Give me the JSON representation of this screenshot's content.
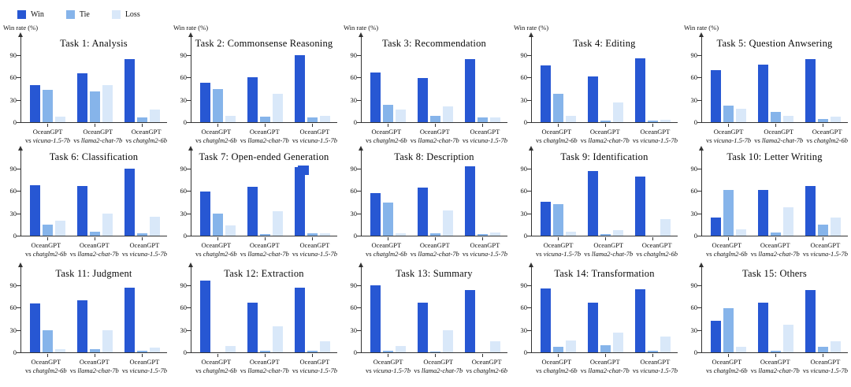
{
  "legend": {
    "items": [
      {
        "label": "Win",
        "color": "#2757D3"
      },
      {
        "label": "Tie",
        "color": "#86B4EA"
      },
      {
        "label": "Loss",
        "color": "#D9E8F9"
      }
    ]
  },
  "axis": {
    "ylabel": "Win rate (%)",
    "yticks": [
      0,
      30,
      60,
      90
    ],
    "ymax": 100,
    "subject": "OceanGPT",
    "vs": "vs"
  },
  "chart_data": [
    {
      "type": "bar",
      "title": "Task 1: Analysis",
      "show_ylabel": true,
      "ylabel": "Win rate (%)",
      "ylim": [
        0,
        100
      ],
      "yticks": [
        0,
        30,
        60,
        90
      ],
      "opponents": [
        "vicuna-1.5-7b",
        "llama2-chat-7b",
        "chatglm2-6b"
      ],
      "categories": [
        "OceanGPT vs vicuna-1.5-7b",
        "OceanGPT vs llama2-chat-7b",
        "OceanGPT vs chatglm2-6b"
      ],
      "series": [
        {
          "name": "Win",
          "values": [
            50,
            65,
            84
          ]
        },
        {
          "name": "Tie",
          "values": [
            43,
            41,
            6
          ]
        },
        {
          "name": "Loss",
          "values": [
            7,
            49,
            17
          ]
        }
      ]
    },
    {
      "type": "bar",
      "title": "Task 2: Commonsense Reasoning",
      "show_ylabel": true,
      "ylabel": "Win rate (%)",
      "ylim": [
        0,
        100
      ],
      "yticks": [
        0,
        30,
        60,
        90
      ],
      "opponents": [
        "chatglm2-6b",
        "llama2-chat-7b",
        "vicuna-1.5-7b"
      ],
      "categories": [
        "OceanGPT vs chatglm2-6b",
        "OceanGPT vs llama2-chat-7b",
        "OceanGPT vs vicuna-1.5-7b"
      ],
      "series": [
        {
          "name": "Win",
          "values": [
            53,
            60,
            90
          ]
        },
        {
          "name": "Tie",
          "values": [
            44,
            7,
            6
          ]
        },
        {
          "name": "Loss",
          "values": [
            8,
            38,
            8
          ]
        }
      ]
    },
    {
      "type": "bar",
      "title": "Task 3: Recommendation",
      "show_ylabel": true,
      "ylabel": "Win rate (%)",
      "ylim": [
        0,
        100
      ],
      "yticks": [
        0,
        30,
        60,
        90
      ],
      "opponents": [
        "chatglm2-6b",
        "llama2-chat-7b",
        "vicuna-1.5-7b"
      ],
      "categories": [
        "OceanGPT vs chatglm2-6b",
        "OceanGPT vs llama2-chat-7b",
        "OceanGPT vs vicuna-1.5-7b"
      ],
      "series": [
        {
          "name": "Win",
          "values": [
            66,
            59,
            84
          ]
        },
        {
          "name": "Tie",
          "values": [
            23,
            8,
            6
          ]
        },
        {
          "name": "Loss",
          "values": [
            17,
            21,
            6
          ]
        }
      ]
    },
    {
      "type": "bar",
      "title": "Task 4: Editing",
      "show_ylabel": true,
      "ylabel": "Win rate (%)",
      "ylim": [
        0,
        100
      ],
      "yticks": [
        0,
        30,
        60,
        90
      ],
      "opponents": [
        "chatglm2-6b",
        "llama2-chat-7b",
        "vicuna-1.5-7b"
      ],
      "categories": [
        "OceanGPT vs chatglm2-6b",
        "OceanGPT vs llama2-chat-7b",
        "OceanGPT vs vicuna-1.5-7b"
      ],
      "series": [
        {
          "name": "Win",
          "values": [
            76,
            61,
            85
          ]
        },
        {
          "name": "Tie",
          "values": [
            38,
            2,
            2
          ]
        },
        {
          "name": "Loss",
          "values": [
            8,
            26,
            3
          ]
        }
      ]
    },
    {
      "type": "bar",
      "title": "Task 5: Question Anwsering",
      "show_ylabel": true,
      "ylabel": "Win rate (%)",
      "ylim": [
        0,
        100
      ],
      "yticks": [
        0,
        30,
        60,
        90
      ],
      "opponents": [
        "vicuna-1.5-7b",
        "llama2-chat-7b",
        "chatglm2-6b"
      ],
      "categories": [
        "OceanGPT vs vicuna-1.5-7b",
        "OceanGPT vs llama2-chat-7b",
        "OceanGPT vs chatglm2-6b"
      ],
      "series": [
        {
          "name": "Win",
          "values": [
            70,
            77,
            84
          ]
        },
        {
          "name": "Tie",
          "values": [
            22,
            14,
            4
          ]
        },
        {
          "name": "Loss",
          "values": [
            18,
            8,
            7
          ]
        }
      ]
    },
    {
      "type": "bar",
      "title": "Task 6: Classification",
      "show_ylabel": false,
      "ylabel": "Win rate (%)",
      "ylim": [
        0,
        100
      ],
      "yticks": [
        0,
        30,
        60,
        90
      ],
      "opponents": [
        "chatglm2-6b",
        "llama2-chat-7b",
        "vicuna-1.5-7b"
      ],
      "categories": [
        "OceanGPT vs chatglm2-6b",
        "OceanGPT vs llama2-chat-7b",
        "OceanGPT vs vicuna-1.5-7b"
      ],
      "series": [
        {
          "name": "Win",
          "values": [
            67,
            66,
            90
          ]
        },
        {
          "name": "Tie",
          "values": [
            15,
            5,
            3
          ]
        },
        {
          "name": "Loss",
          "values": [
            20,
            30,
            25
          ]
        }
      ]
    },
    {
      "type": "bar",
      "title": "Task 7: Open-ended Generation",
      "show_ylabel": false,
      "stray_swatch": true,
      "ylabel": "Win rate (%)",
      "ylim": [
        0,
        100
      ],
      "yticks": [
        0,
        30,
        60,
        90
      ],
      "opponents": [
        "chatglm2-6b",
        "llama2-chat-7b",
        "vicuna-1.5-7b"
      ],
      "categories": [
        "OceanGPT vs chatglm2-6b",
        "OceanGPT vs llama2-chat-7b",
        "OceanGPT vs vicuna-1.5-7b"
      ],
      "series": [
        {
          "name": "Win",
          "values": [
            59,
            65,
            92
          ]
        },
        {
          "name": "Tie",
          "values": [
            29,
            2,
            3
          ]
        },
        {
          "name": "Loss",
          "values": [
            14,
            33,
            3
          ]
        }
      ]
    },
    {
      "type": "bar",
      "title": "Task 8: Description",
      "show_ylabel": false,
      "ylabel": "Win rate (%)",
      "ylim": [
        0,
        100
      ],
      "yticks": [
        0,
        30,
        60,
        90
      ],
      "opponents": [
        "chatglm2-6b",
        "llama2-chat-7b",
        "vicuna-1.5-7b"
      ],
      "categories": [
        "OceanGPT vs chatglm2-6b",
        "OceanGPT vs llama2-chat-7b",
        "OceanGPT vs vicuna-1.5-7b"
      ],
      "series": [
        {
          "name": "Win",
          "values": [
            57,
            64,
            93
          ]
        },
        {
          "name": "Tie",
          "values": [
            44,
            3,
            2
          ]
        },
        {
          "name": "Loss",
          "values": [
            3,
            34,
            4
          ]
        }
      ]
    },
    {
      "type": "bar",
      "title": "Task 9: Identification",
      "show_ylabel": false,
      "ylabel": "Win rate (%)",
      "ylim": [
        0,
        100
      ],
      "yticks": [
        0,
        30,
        60,
        90
      ],
      "opponents": [
        "vicuna-1.5-7b",
        "llama2-chat-7b",
        "chatglm2-6b"
      ],
      "categories": [
        "OceanGPT vs vicuna-1.5-7b",
        "OceanGPT vs llama2-chat-7b",
        "OceanGPT vs chatglm2-6b"
      ],
      "series": [
        {
          "name": "Win",
          "values": [
            45,
            86,
            79
          ]
        },
        {
          "name": "Tie",
          "values": [
            42,
            2,
            0
          ]
        },
        {
          "name": "Loss",
          "values": [
            5,
            7,
            22
          ]
        }
      ]
    },
    {
      "type": "bar",
      "title": "Task 10: Letter Writing",
      "show_ylabel": false,
      "ylabel": "Win rate (%)",
      "ylim": [
        0,
        100
      ],
      "yticks": [
        0,
        30,
        60,
        90
      ],
      "opponents": [
        "chatglm2-6b",
        "llama2-chat-7b",
        "vicuna-1.5-7b"
      ],
      "categories": [
        "OceanGPT vs chatglm2-6b",
        "OceanGPT vs llama2-chat-7b",
        "OceanGPT vs vicuna-1.5-7b"
      ],
      "series": [
        {
          "name": "Win",
          "values": [
            24,
            61,
            66
          ]
        },
        {
          "name": "Tie",
          "values": [
            61,
            4,
            15
          ]
        },
        {
          "name": "Loss",
          "values": [
            8,
            38,
            24
          ]
        }
      ]
    },
    {
      "type": "bar",
      "title": "Task 11: Judgment",
      "show_ylabel": false,
      "ylabel": "Win rate (%)",
      "ylim": [
        0,
        100
      ],
      "yticks": [
        0,
        30,
        60,
        90
      ],
      "opponents": [
        "chatglm2-6b",
        "llama2-chat-7b",
        "vicuna-1.5-7b"
      ],
      "categories": [
        "OceanGPT vs chatglm2-6b",
        "OceanGPT vs llama2-chat-7b",
        "OceanGPT vs vicuna-1.5-7b"
      ],
      "series": [
        {
          "name": "Win",
          "values": [
            65,
            69,
            86
          ]
        },
        {
          "name": "Tie",
          "values": [
            30,
            4,
            2
          ]
        },
        {
          "name": "Loss",
          "values": [
            4,
            29,
            6
          ]
        }
      ]
    },
    {
      "type": "bar",
      "title": "Task 12: Extraction",
      "show_ylabel": false,
      "ylabel": "Win rate (%)",
      "ylim": [
        0,
        100
      ],
      "yticks": [
        0,
        30,
        60,
        90
      ],
      "opponents": [
        "chatglm2-6b",
        "llama2-chat-7b",
        "vicuna-1.5-7b"
      ],
      "categories": [
        "OceanGPT vs chatglm2-6b",
        "OceanGPT vs llama2-chat-7b",
        "OceanGPT vs vicuna-1.5-7b"
      ],
      "series": [
        {
          "name": "Win",
          "values": [
            96,
            66,
            86
          ]
        },
        {
          "name": "Tie",
          "values": [
            0,
            2,
            2
          ]
        },
        {
          "name": "Loss",
          "values": [
            8,
            35,
            15
          ]
        }
      ]
    },
    {
      "type": "bar",
      "title": "Task 13: Summary",
      "show_ylabel": false,
      "ylabel": "Win rate (%)",
      "ylim": [
        0,
        100
      ],
      "yticks": [
        0,
        30,
        60,
        90
      ],
      "opponents": [
        "vicuna-1.5-7b",
        "llama2-chat-7b",
        "chatglm2-6b"
      ],
      "categories": [
        "OceanGPT vs vicuna-1.5-7b",
        "OceanGPT vs llama2-chat-7b",
        "OceanGPT vs chatglm2-6b"
      ],
      "series": [
        {
          "name": "Win",
          "values": [
            90,
            66,
            83
          ]
        },
        {
          "name": "Tie",
          "values": [
            2,
            1,
            0
          ]
        },
        {
          "name": "Loss",
          "values": [
            8,
            30,
            15
          ]
        }
      ]
    },
    {
      "type": "bar",
      "title": "Task 14: Transformation",
      "show_ylabel": false,
      "ylabel": "Win rate (%)",
      "ylim": [
        0,
        100
      ],
      "yticks": [
        0,
        30,
        60,
        90
      ],
      "opponents": [
        "chatglm2-6b",
        "llama2-chat-7b",
        "vicuna-1.5-7b"
      ],
      "categories": [
        "OceanGPT vs chatglm2-6b",
        "OceanGPT vs llama2-chat-7b",
        "OceanGPT vs vicuna-1.5-7b"
      ],
      "series": [
        {
          "name": "Win",
          "values": [
            85,
            66,
            84
          ]
        },
        {
          "name": "Tie",
          "values": [
            7,
            9,
            2
          ]
        },
        {
          "name": "Loss",
          "values": [
            16,
            26,
            21
          ]
        }
      ]
    },
    {
      "type": "bar",
      "title": "Task 15: Others",
      "show_ylabel": false,
      "ylabel": "Win rate (%)",
      "ylim": [
        0,
        100
      ],
      "yticks": [
        0,
        30,
        60,
        90
      ],
      "opponents": [
        "chatglm2-6b",
        "llama2-chat-7b",
        "vicuna-1.5-7b"
      ],
      "categories": [
        "OceanGPT vs chatglm2-6b",
        "OceanGPT vs llama2-chat-7b",
        "OceanGPT vs vicuna-1.5-7b"
      ],
      "series": [
        {
          "name": "Win",
          "values": [
            42,
            66,
            83
          ]
        },
        {
          "name": "Tie",
          "values": [
            59,
            2,
            7
          ]
        },
        {
          "name": "Loss",
          "values": [
            7,
            37,
            15
          ]
        }
      ]
    }
  ]
}
